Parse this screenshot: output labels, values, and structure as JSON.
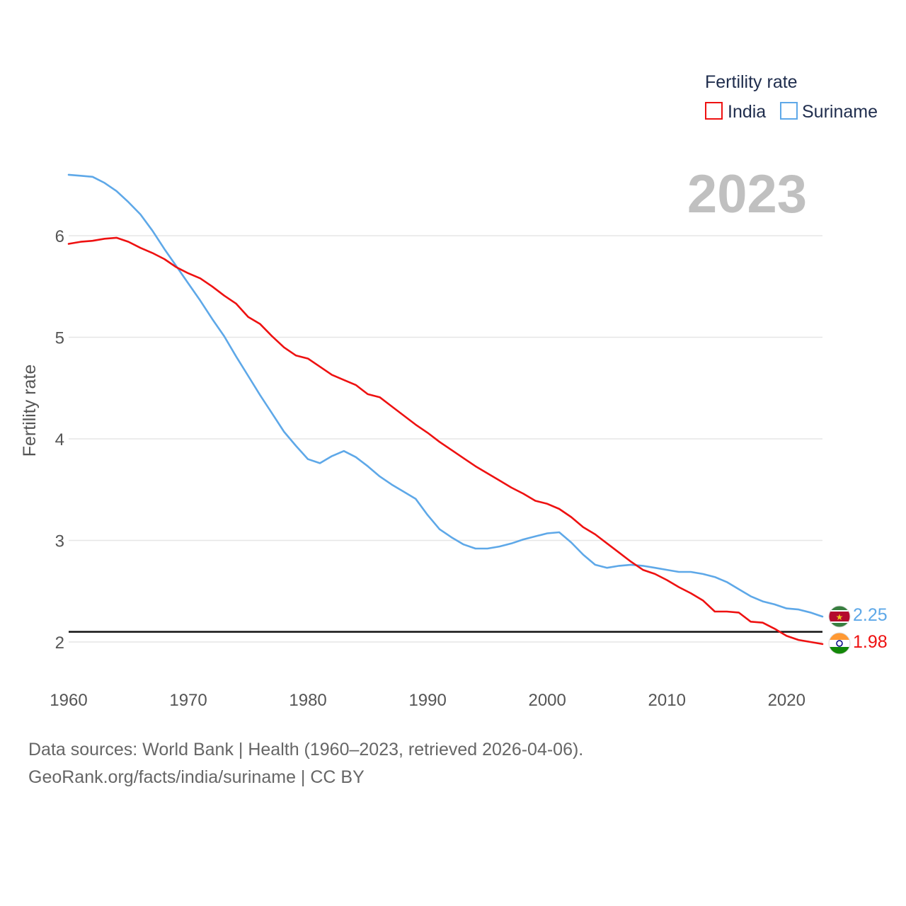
{
  "chart_data": {
    "type": "line",
    "title": "Fertility rate",
    "year_label": "2023",
    "xlabel": "",
    "ylabel": "Fertility rate",
    "xlim": [
      1960,
      2023
    ],
    "ylim": [
      1.7,
      6.8
    ],
    "x_ticks": [
      "1960",
      "1970",
      "1980",
      "1990",
      "2000",
      "2010",
      "2020"
    ],
    "y_ticks": [
      "2",
      "3",
      "4",
      "5",
      "6"
    ],
    "reference_line": 2.1,
    "x": [
      1960,
      1961,
      1962,
      1963,
      1964,
      1965,
      1966,
      1967,
      1968,
      1969,
      1970,
      1971,
      1972,
      1973,
      1974,
      1975,
      1976,
      1977,
      1978,
      1979,
      1980,
      1981,
      1982,
      1983,
      1984,
      1985,
      1986,
      1987,
      1988,
      1989,
      1990,
      1991,
      1992,
      1993,
      1994,
      1995,
      1996,
      1997,
      1998,
      1999,
      2000,
      2001,
      2002,
      2003,
      2004,
      2005,
      2006,
      2007,
      2008,
      2009,
      2010,
      2011,
      2012,
      2013,
      2014,
      2015,
      2016,
      2017,
      2018,
      2019,
      2020,
      2021,
      2022,
      2023
    ],
    "series": [
      {
        "name": "India",
        "color": "#ee1111",
        "end_label": "1.98",
        "flag": "india-flag-icon",
        "values": [
          5.92,
          5.94,
          5.95,
          5.97,
          5.98,
          5.94,
          5.88,
          5.83,
          5.77,
          5.69,
          5.63,
          5.58,
          5.5,
          5.41,
          5.33,
          5.2,
          5.13,
          5.01,
          4.9,
          4.82,
          4.79,
          4.71,
          4.63,
          4.58,
          4.53,
          4.44,
          4.41,
          4.32,
          4.23,
          4.14,
          4.06,
          3.97,
          3.89,
          3.81,
          3.73,
          3.66,
          3.59,
          3.52,
          3.46,
          3.39,
          3.36,
          3.31,
          3.23,
          3.13,
          3.06,
          2.97,
          2.88,
          2.79,
          2.71,
          2.67,
          2.61,
          2.54,
          2.48,
          2.41,
          2.3,
          2.3,
          2.29,
          2.2,
          2.19,
          2.13,
          2.06,
          2.02,
          2.0,
          1.98
        ]
      },
      {
        "name": "Suriname",
        "color": "#5ea8e8",
        "end_label": "2.25",
        "flag": "suriname-flag-icon",
        "values": [
          6.6,
          6.59,
          6.58,
          6.52,
          6.44,
          6.33,
          6.21,
          6.05,
          5.87,
          5.7,
          5.53,
          5.36,
          5.18,
          5.01,
          4.81,
          4.62,
          4.43,
          4.25,
          4.07,
          3.93,
          3.8,
          3.76,
          3.83,
          3.88,
          3.82,
          3.73,
          3.63,
          3.55,
          3.48,
          3.41,
          3.25,
          3.11,
          3.03,
          2.96,
          2.92,
          2.92,
          2.94,
          2.97,
          3.01,
          3.04,
          3.07,
          3.08,
          2.98,
          2.86,
          2.76,
          2.73,
          2.75,
          2.76,
          2.75,
          2.73,
          2.71,
          2.69,
          2.69,
          2.67,
          2.64,
          2.59,
          2.52,
          2.45,
          2.4,
          2.37,
          2.33,
          2.32,
          2.29,
          2.25
        ]
      }
    ]
  },
  "legend": {
    "title": "Fertility rate",
    "items": [
      "India",
      "Suriname"
    ]
  },
  "footer": {
    "line1": "Data sources: World Bank | Health (1960–2023, retrieved 2026-04-06).",
    "line2": "GeoRank.org/facts/india/suriname | CC BY"
  }
}
